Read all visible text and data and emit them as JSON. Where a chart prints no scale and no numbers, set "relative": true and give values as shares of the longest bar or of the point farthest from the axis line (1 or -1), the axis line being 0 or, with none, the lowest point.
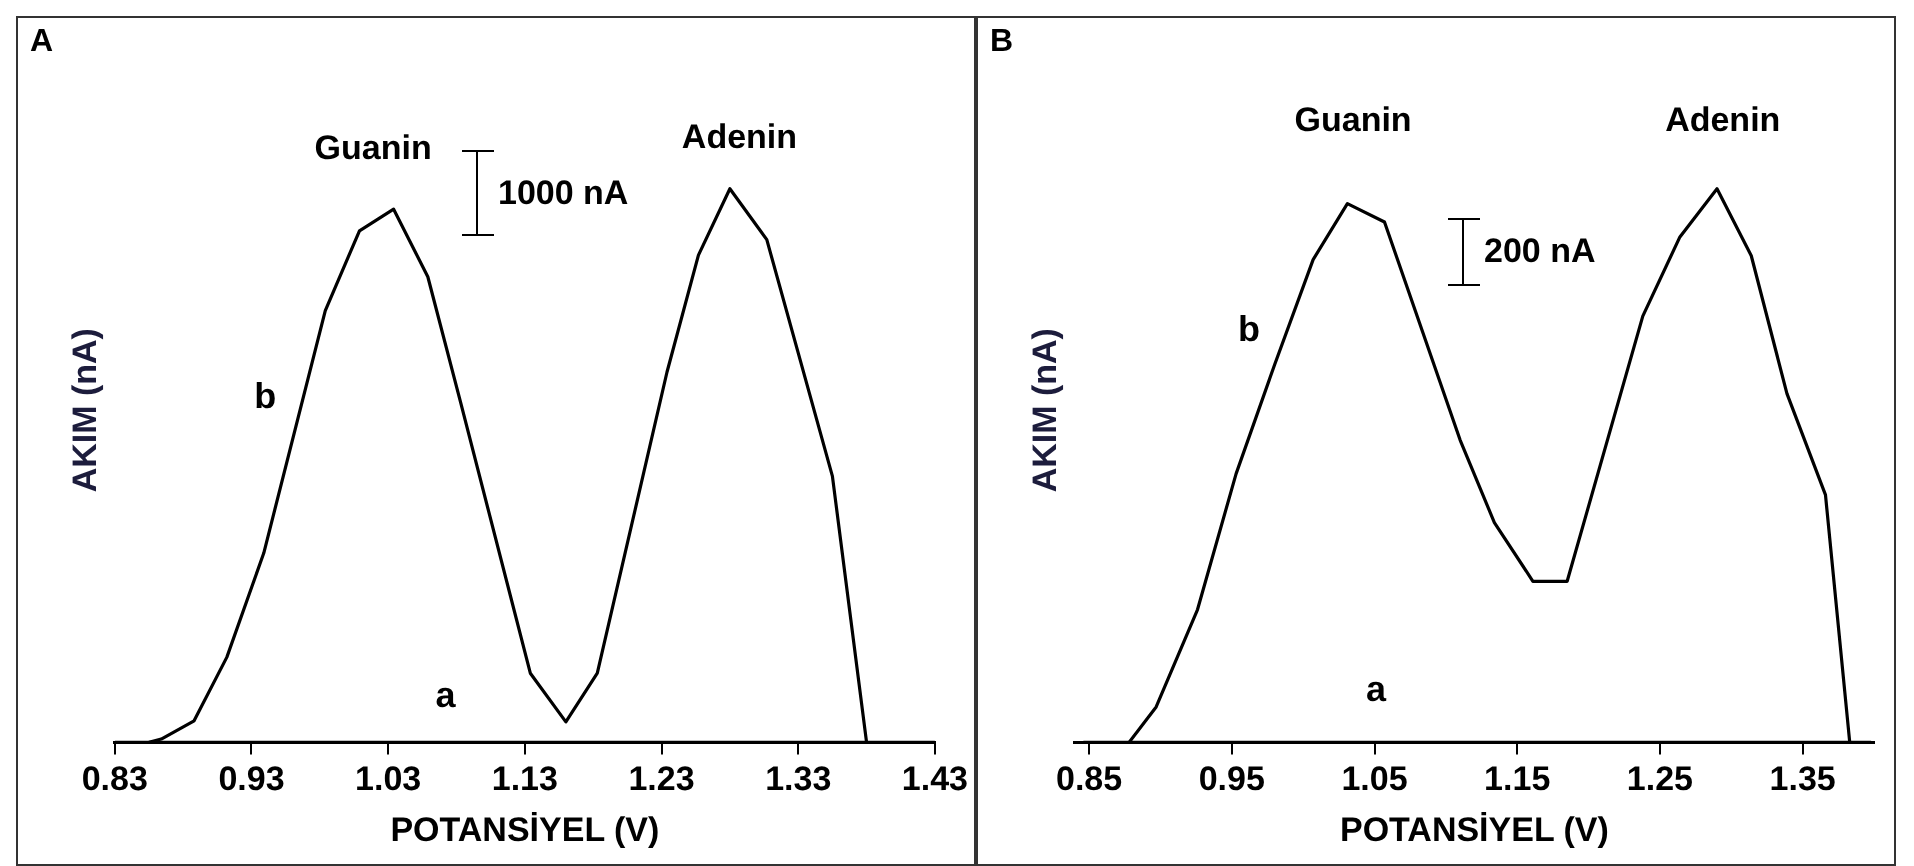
{
  "chart_data": [
    {
      "type": "line",
      "title": "A",
      "xlabel": "POTANSİYEL (V)",
      "ylabel": "AKIM (nA)",
      "relative": true,
      "tick_labels": "x",
      "grid": false,
      "legend": false,
      "marker": "none",
      "line_style": "solid",
      "xlim": [
        0.83,
        1.43
      ],
      "xticks": [
        0.83,
        0.93,
        1.03,
        1.13,
        1.23,
        1.33,
        1.43
      ],
      "series": [
        {
          "name": "a",
          "color": "#000000",
          "x": [
            0.83,
            1.43
          ],
          "values": [
            0,
            0
          ]
        },
        {
          "name": "b",
          "color": "#000000",
          "x": [
            0.855,
            0.864,
            0.888,
            0.912,
            0.939,
            0.984,
            1.009,
            1.034,
            1.059,
            1.083,
            1.134,
            1.16,
            1.183,
            1.234,
            1.257,
            1.28,
            1.307,
            1.355,
            1.38
          ],
          "values": [
            0,
            0.006,
            0.039,
            0.154,
            0.342,
            0.78,
            0.924,
            0.963,
            0.841,
            0.614,
            0.125,
            0.037,
            0.125,
            0.669,
            0.88,
            1,
            0.908,
            0.481,
            0
          ]
        }
      ],
      "annotations": [
        "Guanin",
        "Adenin",
        "1000 nA"
      ]
    },
    {
      "type": "line",
      "title": "B",
      "xlabel": "POTANSİYEL (V)",
      "ylabel": "AKIM (nA)",
      "relative": true,
      "tick_labels": "x",
      "grid": false,
      "legend": false,
      "marker": "none",
      "line_style": "solid",
      "xlim": [
        0.84,
        1.4
      ],
      "xticks": [
        0.85,
        0.95,
        1.05,
        1.15,
        1.25,
        1.35
      ],
      "series": [
        {
          "name": "a",
          "color": "#000000",
          "x": [
            0.846,
            1.398
          ],
          "values": [
            0,
            0
          ]
        },
        {
          "name": "b",
          "color": "#000000",
          "x": [
            0.878,
            0.897,
            0.926,
            0.953,
            0.98,
            1.007,
            1.031,
            1.057,
            1.11,
            1.134,
            1.161,
            1.185,
            1.238,
            1.264,
            1.29,
            1.314,
            1.339,
            1.366,
            1.383
          ],
          "values": [
            0,
            0.064,
            0.24,
            0.485,
            0.682,
            0.872,
            0.973,
            0.94,
            0.546,
            0.397,
            0.291,
            0.291,
            0.77,
            0.913,
            1,
            0.879,
            0.63,
            0.447,
            0
          ]
        }
      ],
      "annotations": [
        "Guanin",
        "Adenin",
        "200 nA"
      ]
    }
  ]
}
